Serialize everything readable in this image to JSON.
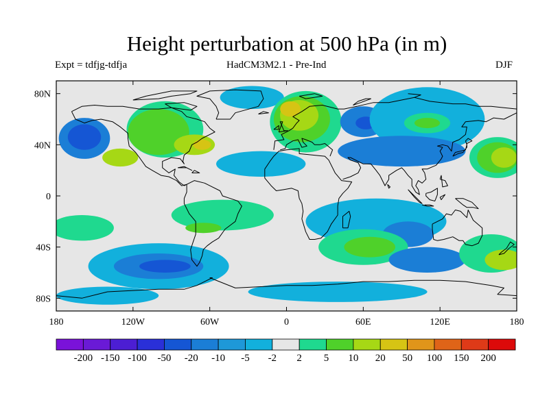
{
  "title": "Height perturbation at 500 hPa (in m)",
  "left_label": "Expt = tdfjg-tdfja",
  "center_label": "HadCM3M2.1 - Pre-Ind",
  "right_label": "DJF",
  "map": {
    "projection": "cylindrical equidistant",
    "lon_range": [
      -180,
      180
    ],
    "lat_range": [
      -90,
      90
    ],
    "background_color": "#e6e6e6",
    "coastline_color": "#000000"
  },
  "axes": {
    "lat_ticks": [
      {
        "value": 80,
        "label": "80N"
      },
      {
        "value": 40,
        "label": "40N"
      },
      {
        "value": 0,
        "label": "0"
      },
      {
        "value": -40,
        "label": "40S"
      },
      {
        "value": -80,
        "label": "80S"
      }
    ],
    "lon_ticks": [
      {
        "value": -180,
        "label": "180"
      },
      {
        "value": -120,
        "label": "120W"
      },
      {
        "value": -60,
        "label": "60W"
      },
      {
        "value": 0,
        "label": "0"
      },
      {
        "value": 60,
        "label": "60E"
      },
      {
        "value": 120,
        "label": "120E"
      },
      {
        "value": 180,
        "label": "180"
      }
    ]
  },
  "colorbar": {
    "colors": [
      "#7a12d9",
      "#6a1ad6",
      "#4c1ed3",
      "#2a30d8",
      "#1556d4",
      "#1b7ed6",
      "#1e98d8",
      "#12b0dc",
      "#e6e6e6",
      "#1fd98f",
      "#4fd12a",
      "#a6d815",
      "#d6c414",
      "#e0951a",
      "#df6418",
      "#de3a18",
      "#dc0a0a"
    ],
    "labels": [
      "-200",
      "-150",
      "-100",
      "-50",
      "-20",
      "-10",
      "-5",
      "-2",
      "2",
      "5",
      "10",
      "20",
      "50",
      "100",
      "150",
      "200"
    ]
  },
  "field_regions": [
    {
      "level": "-10",
      "color": "#1b7ed6",
      "lon": -158,
      "lat": 45,
      "rlon": 20,
      "rlat": 16
    },
    {
      "level": "-20",
      "color": "#1556d4",
      "lon": -158,
      "lat": 46,
      "rlon": 13,
      "rlat": 10
    },
    {
      "level": "5",
      "color": "#1fd98f",
      "lon": -95,
      "lat": 52,
      "rlon": 30,
      "rlat": 22
    },
    {
      "level": "10",
      "color": "#4fd12a",
      "lon": -100,
      "lat": 50,
      "rlon": 24,
      "rlat": 18
    },
    {
      "level": "20",
      "color": "#a6d815",
      "lon": -72,
      "lat": 40,
      "rlon": 16,
      "rlat": 8
    },
    {
      "level": "50",
      "color": "#d6c414",
      "lon": -66,
      "lat": 40,
      "rlon": 7,
      "rlat": 4
    },
    {
      "level": "20",
      "color": "#a6d815",
      "lon": -130,
      "lat": 30,
      "rlon": 14,
      "rlat": 7
    },
    {
      "level": "-5",
      "color": "#12b0dc",
      "lon": -27,
      "lat": 77,
      "rlon": 25,
      "rlat": 9
    },
    {
      "level": "5",
      "color": "#1fd98f",
      "lon": 15,
      "lat": 58,
      "rlon": 28,
      "rlat": 24
    },
    {
      "level": "10",
      "color": "#4fd12a",
      "lon": 12,
      "lat": 60,
      "rlon": 22,
      "rlat": 18
    },
    {
      "level": "20",
      "color": "#a6d815",
      "lon": 10,
      "lat": 63,
      "rlon": 15,
      "rlat": 12
    },
    {
      "level": "50",
      "color": "#d6c414",
      "lon": 3,
      "lat": 68,
      "rlon": 8,
      "rlat": 6
    },
    {
      "level": "-10",
      "color": "#1b7ed6",
      "lon": 60,
      "lat": 58,
      "rlon": 18,
      "rlat": 12
    },
    {
      "level": "-20",
      "color": "#1556d4",
      "lon": 62,
      "lat": 57,
      "rlon": 8,
      "rlat": 5
    },
    {
      "level": "-5",
      "color": "#12b0dc",
      "lon": 110,
      "lat": 60,
      "rlon": 45,
      "rlat": 25
    },
    {
      "level": "5",
      "color": "#1fd98f",
      "lon": 110,
      "lat": 57,
      "rlon": 18,
      "rlat": 8
    },
    {
      "level": "10",
      "color": "#4fd12a",
      "lon": 110,
      "lat": 57,
      "rlon": 10,
      "rlat": 4
    },
    {
      "level": "-10",
      "color": "#1b7ed6",
      "lon": 90,
      "lat": 35,
      "rlon": 50,
      "rlat": 12
    },
    {
      "level": "5",
      "color": "#1fd98f",
      "lon": 165,
      "lat": 30,
      "rlon": 22,
      "rlat": 16
    },
    {
      "level": "10",
      "color": "#4fd12a",
      "lon": 165,
      "lat": 30,
      "rlon": 16,
      "rlat": 12
    },
    {
      "level": "20",
      "color": "#a6d815",
      "lon": 170,
      "lat": 30,
      "rlon": 10,
      "rlat": 8
    },
    {
      "level": "-5",
      "color": "#12b0dc",
      "lon": -20,
      "lat": 25,
      "rlon": 35,
      "rlat": 10
    },
    {
      "level": "-5",
      "color": "#12b0dc",
      "lon": 70,
      "lat": -20,
      "rlon": 55,
      "rlat": 18
    },
    {
      "level": "-10",
      "color": "#1b7ed6",
      "lon": 95,
      "lat": -30,
      "rlon": 20,
      "rlat": 10
    },
    {
      "level": "5",
      "color": "#1fd98f",
      "lon": -50,
      "lat": -15,
      "rlon": 40,
      "rlat": 12
    },
    {
      "level": "10",
      "color": "#4fd12a",
      "lon": -65,
      "lat": -25,
      "rlon": 14,
      "rlat": 4
    },
    {
      "level": "-5",
      "color": "#12b0dc",
      "lon": -100,
      "lat": -55,
      "rlon": 55,
      "rlat": 18
    },
    {
      "level": "-10",
      "color": "#1b7ed6",
      "lon": -100,
      "lat": -55,
      "rlon": 35,
      "rlat": 10
    },
    {
      "level": "-20",
      "color": "#1556d4",
      "lon": -95,
      "lat": -55,
      "rlon": 20,
      "rlat": 5
    },
    {
      "level": "5",
      "color": "#1fd98f",
      "lon": -160,
      "lat": -25,
      "rlon": 25,
      "rlat": 10
    },
    {
      "level": "5",
      "color": "#1fd98f",
      "lon": 60,
      "lat": -40,
      "rlon": 35,
      "rlat": 14
    },
    {
      "level": "10",
      "color": "#4fd12a",
      "lon": 65,
      "lat": -40,
      "rlon": 20,
      "rlat": 8
    },
    {
      "level": "-10",
      "color": "#1b7ed6",
      "lon": 110,
      "lat": -50,
      "rlon": 30,
      "rlat": 10
    },
    {
      "level": "5",
      "color": "#1fd98f",
      "lon": 160,
      "lat": -45,
      "rlon": 25,
      "rlat": 15
    },
    {
      "level": "20",
      "color": "#a6d815",
      "lon": 170,
      "lat": -50,
      "rlon": 15,
      "rlat": 8
    },
    {
      "level": "-5",
      "color": "#12b0dc",
      "lon": 40,
      "lat": -75,
      "rlon": 70,
      "rlat": 8
    },
    {
      "level": "-5",
      "color": "#12b0dc",
      "lon": -140,
      "lat": -78,
      "rlon": 40,
      "rlat": 7
    }
  ]
}
